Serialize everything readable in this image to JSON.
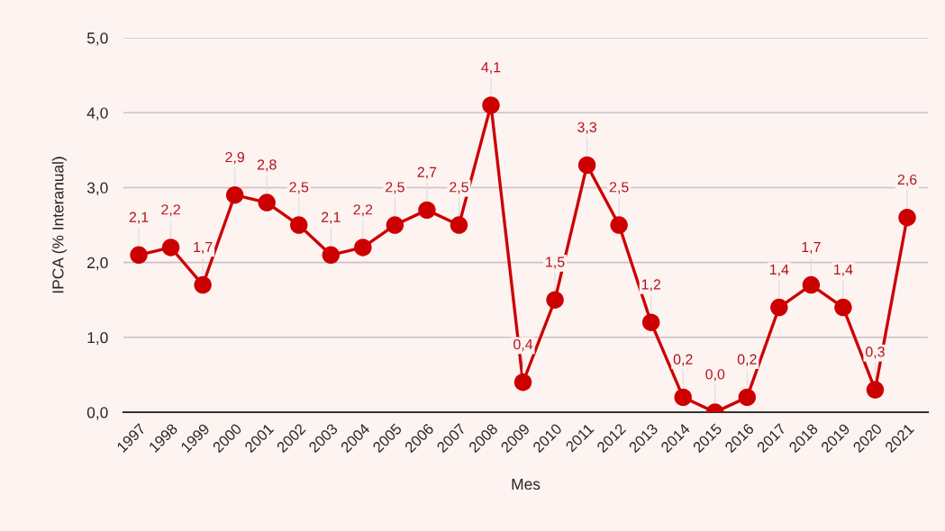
{
  "chart_data": {
    "type": "line",
    "xlabel": "Mes",
    "ylabel": "IPCA (% Interanual)",
    "categories": [
      "1997",
      "1998",
      "1999",
      "2000",
      "2001",
      "2002",
      "2003",
      "2004",
      "2005",
      "2006",
      "2007",
      "2008",
      "2009",
      "2010",
      "2011",
      "2012",
      "2013",
      "2014",
      "2015",
      "2016",
      "2017",
      "2018",
      "2019",
      "2020",
      "2021"
    ],
    "series": [
      {
        "color": "#cc0000",
        "values": [
          2.1,
          2.2,
          1.7,
          2.9,
          2.8,
          2.5,
          2.1,
          2.2,
          2.5,
          2.7,
          2.5,
          4.1,
          0.4,
          1.5,
          3.3,
          2.5,
          1.2,
          0.2,
          0.0,
          0.2,
          1.4,
          1.7,
          1.4,
          0.3,
          2.6
        ],
        "value_labels": [
          "2,1",
          "2,2",
          "1,7",
          "2,9",
          "2,8",
          "2,5",
          "2,1",
          "2,2",
          "2,5",
          "2,7",
          "2,5",
          "4,1",
          "0,4",
          "1,5",
          "3,3",
          "2,5",
          "1,2",
          "0,2",
          "0,0",
          "0,2",
          "1,4",
          "1,7",
          "1,4",
          "0,3",
          "2,6"
        ]
      }
    ],
    "ylim": [
      0,
      5
    ],
    "yticks": [
      {
        "value": 0,
        "label": "0,0"
      },
      {
        "value": 1,
        "label": "1,0"
      },
      {
        "value": 2,
        "label": "2,0"
      },
      {
        "value": 3,
        "label": "3,0"
      },
      {
        "value": 4,
        "label": "4,0"
      },
      {
        "value": 5,
        "label": "5,0"
      }
    ],
    "grid": "y",
    "marker": "circle",
    "line_style": "solid"
  }
}
